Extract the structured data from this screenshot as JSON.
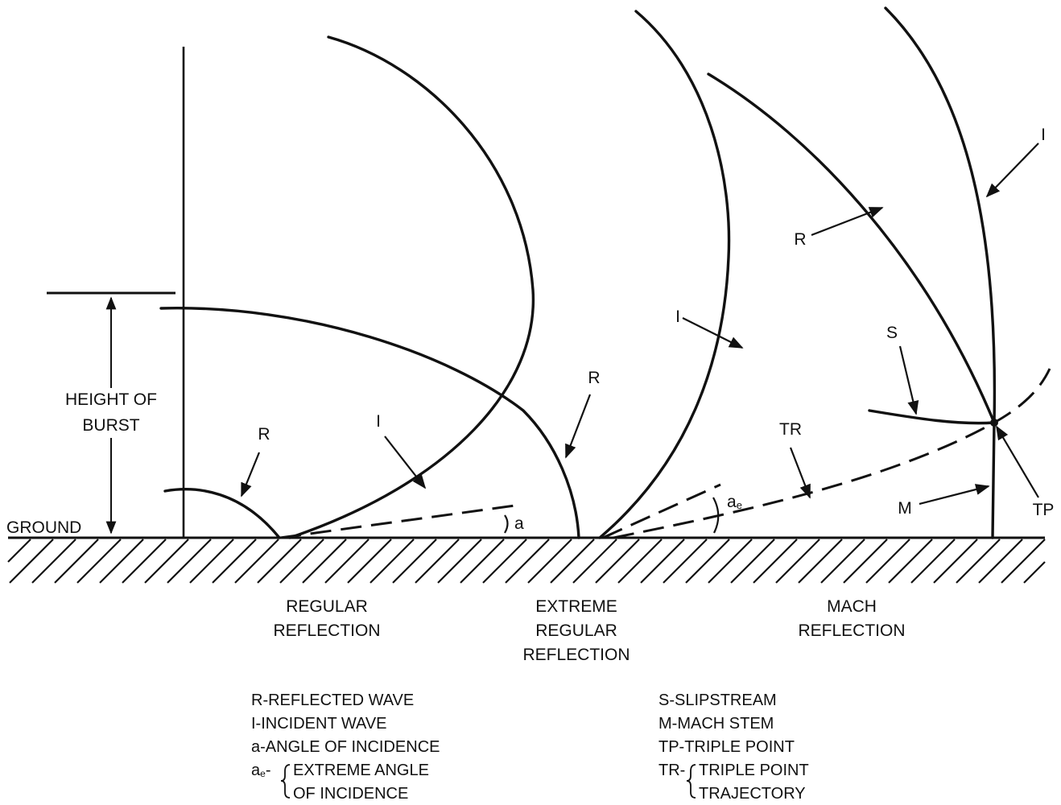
{
  "labels": {
    "height_of_burst_line1": "HEIGHT OF",
    "height_of_burst_line2": "BURST",
    "ground": "GROUND",
    "r": "R",
    "i": "I",
    "a": "a",
    "ae_main": "a",
    "ae_sub": "e",
    "tr": "TR",
    "s": "S",
    "m": "M",
    "tp": "TP"
  },
  "captions": {
    "regular": [
      "REGULAR",
      "REFLECTION"
    ],
    "extreme": [
      "EXTREME",
      "REGULAR",
      "REFLECTION"
    ],
    "mach": [
      "MACH",
      "REFLECTION"
    ]
  },
  "legend_left": {
    "r": "R-REFLECTED WAVE",
    "i": "I-INCIDENT WAVE",
    "a": "a-ANGLE OF INCIDENCE",
    "ae_prefix_main": "a",
    "ae_prefix_sub": "e",
    "ae_prefix_dash": "-",
    "ae_line1": "EXTREME ANGLE",
    "ae_line2": "OF INCIDENCE"
  },
  "legend_right": {
    "s": "S-SLIPSTREAM",
    "m": "M-MACH STEM",
    "tp": "TP-TRIPLE POINT",
    "tr_prefix": "TR-",
    "tr_line1": "TRIPLE POINT",
    "tr_line2": "TRAJECTORY"
  }
}
